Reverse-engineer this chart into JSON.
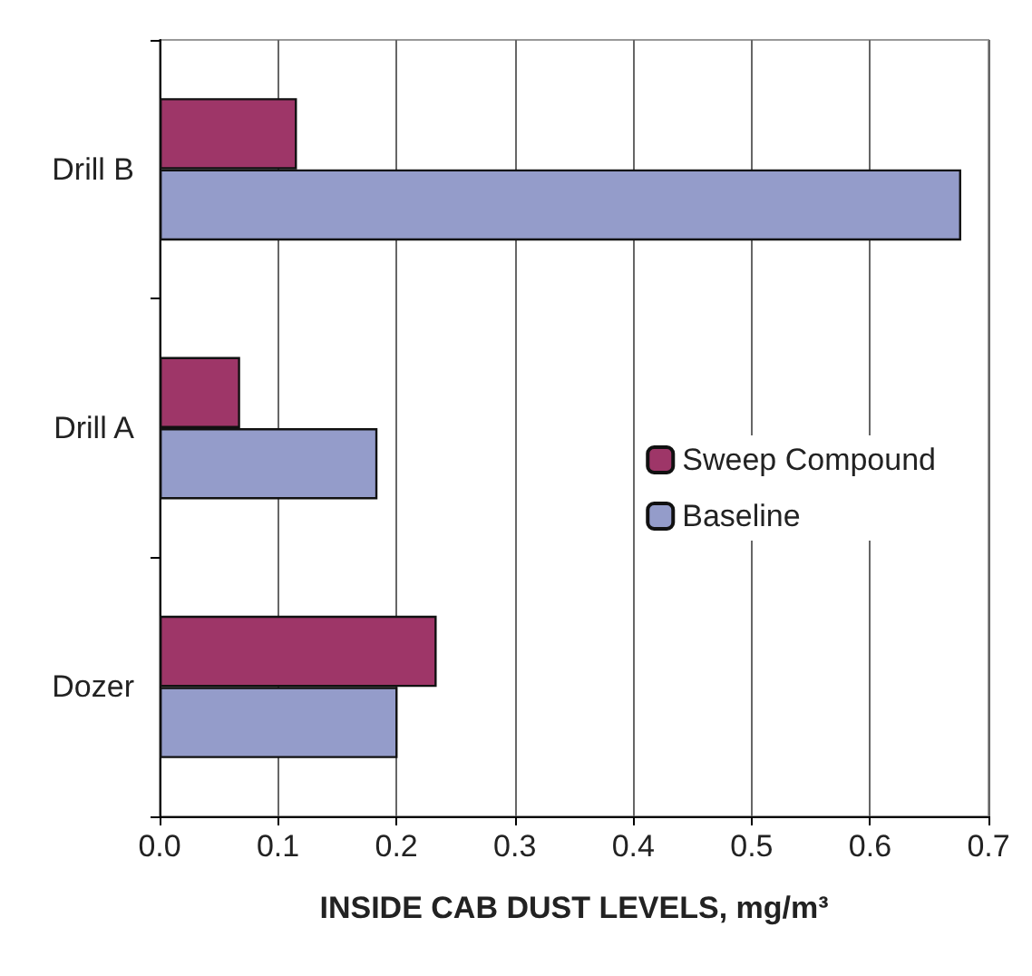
{
  "chart_data": {
    "type": "bar",
    "orientation": "horizontal",
    "xlabel": "INSIDE CAB DUST LEVELS, mg/m³",
    "categories": [
      "Drill B",
      "Drill A",
      "Dozer"
    ],
    "series": [
      {
        "name": "Sweep Compound",
        "color": "#9e3668",
        "values": [
          0.116,
          0.068,
          0.234
        ]
      },
      {
        "name": "Baseline",
        "color": "#949cca",
        "values": [
          0.677,
          0.184,
          0.201
        ]
      }
    ],
    "xlim": [
      0,
      0.7
    ],
    "xticks": [
      {
        "value": 0,
        "label": "0.0"
      },
      {
        "value": 0.1,
        "label": "0.1"
      },
      {
        "value": 0.2,
        "label": "0.2"
      },
      {
        "value": 0.3,
        "label": "0.3"
      },
      {
        "value": 0.4,
        "label": "0.4"
      },
      {
        "value": 0.5,
        "label": "0.5"
      },
      {
        "value": 0.6,
        "label": "0.6"
      },
      {
        "value": 0.7,
        "label": "0.7"
      }
    ],
    "grid": "x",
    "legend": "right"
  }
}
